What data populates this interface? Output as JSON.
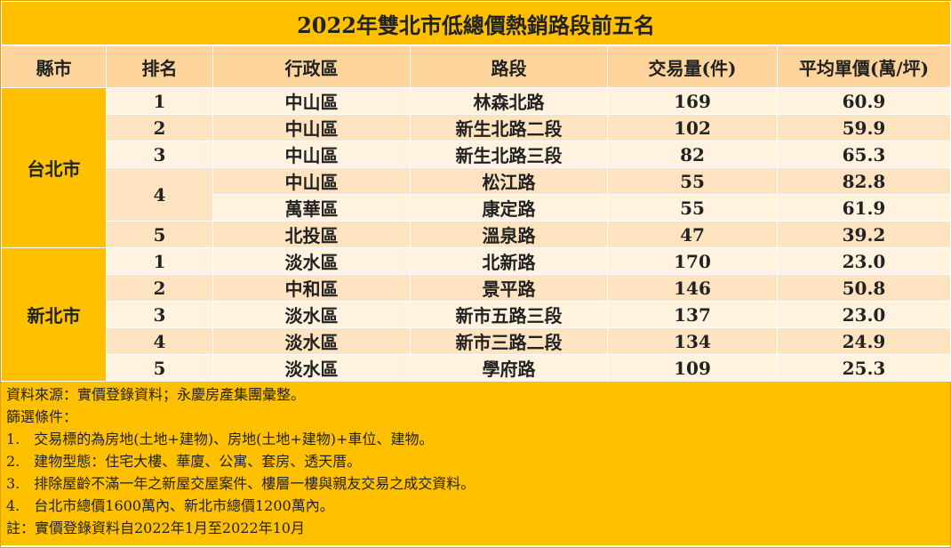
{
  "table": {
    "title": "2022年雙北市低總價熱銷路段前五名",
    "headers": [
      "縣市",
      "排名",
      "行政區",
      "路段",
      "交易量(件)",
      "平均單價(萬/坪)"
    ],
    "groups": [
      {
        "county": "台北市",
        "ranks": [
          {
            "rank": "1",
            "rows": [
              {
                "district": "中山區",
                "road": "林森北路",
                "volume": 169,
                "price": "60.9"
              }
            ]
          },
          {
            "rank": "2",
            "rows": [
              {
                "district": "中山區",
                "road": "新生北路二段",
                "volume": 102,
                "price": "59.9"
              }
            ]
          },
          {
            "rank": "3",
            "rows": [
              {
                "district": "中山區",
                "road": "新生北路三段",
                "volume": 82,
                "price": "65.3"
              }
            ]
          },
          {
            "rank": "4",
            "rows": [
              {
                "district": "中山區",
                "road": "松江路",
                "volume": 55,
                "price": "82.8"
              },
              {
                "district": "萬華區",
                "road": "康定路",
                "volume": 55,
                "price": "61.9"
              }
            ]
          },
          {
            "rank": "5",
            "rows": [
              {
                "district": "北投區",
                "road": "溫泉路",
                "volume": 47,
                "price": "39.2"
              }
            ]
          }
        ]
      },
      {
        "county": "新北市",
        "ranks": [
          {
            "rank": "1",
            "rows": [
              {
                "district": "淡水區",
                "road": "北新路",
                "volume": 170,
                "price": "23.0"
              }
            ]
          },
          {
            "rank": "2",
            "rows": [
              {
                "district": "中和區",
                "road": "景平路",
                "volume": 146,
                "price": "50.8"
              }
            ]
          },
          {
            "rank": "3",
            "rows": [
              {
                "district": "淡水區",
                "road": "新市五路三段",
                "volume": 137,
                "price": "23.0"
              }
            ]
          },
          {
            "rank": "4",
            "rows": [
              {
                "district": "淡水區",
                "road": "新市三路二段",
                "volume": 134,
                "price": "24.9"
              }
            ]
          },
          {
            "rank": "5",
            "rows": [
              {
                "district": "淡水區",
                "road": "學府路",
                "volume": 109,
                "price": "25.3"
              }
            ]
          }
        ]
      }
    ]
  },
  "notes": [
    "資料來源：實價登錄資料；永慶房產集團彙整。",
    "篩選條件：",
    "1.　交易標的為房地(土地+建物)、房地(土地+建物)+車位、建物。",
    "2.　建物型態：住宅大樓、華廈、公寓、套房、透天厝。",
    "3.　排除屋齡不滿一年之新屋交屋案件、樓層一樓與親友交易之成交資料。",
    "4.　台北市總價1600萬內、新北市總價1200萬內。",
    "註：實價登錄資料自2022年1月至2022年10月"
  ]
}
